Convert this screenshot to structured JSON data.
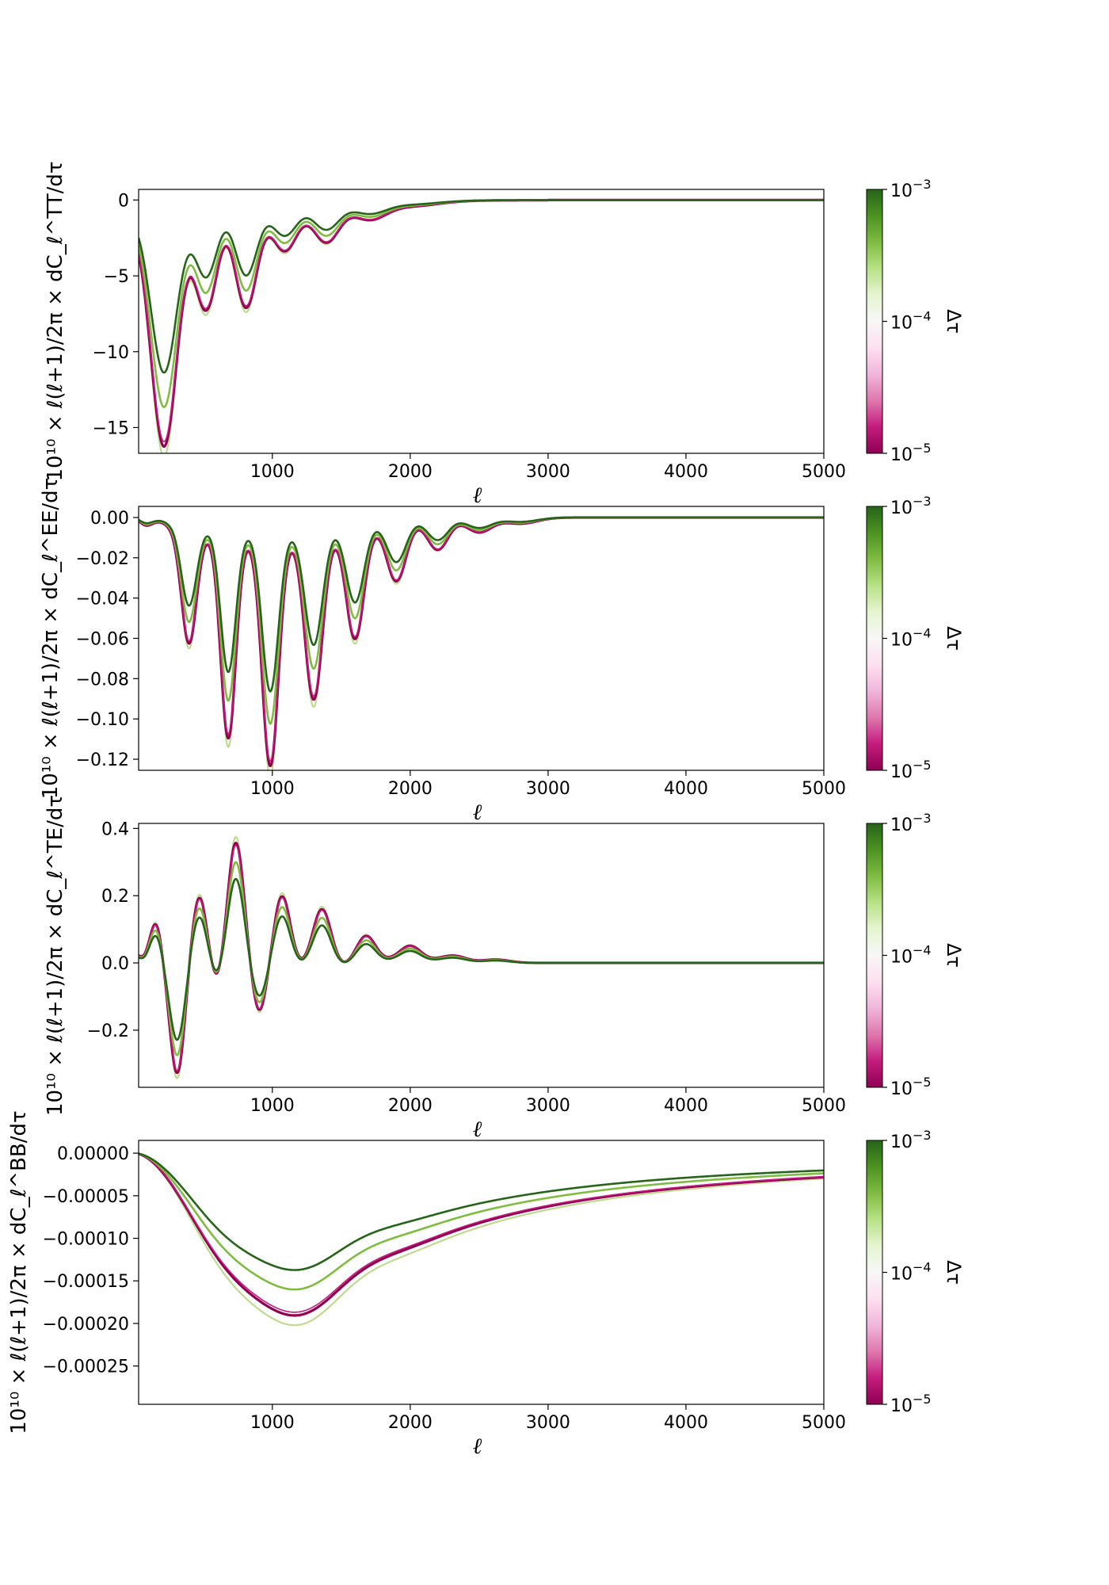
{
  "colorbar": {
    "label": "Δτ",
    "ticks": [
      {
        "base": "10",
        "exp": "−3"
      },
      {
        "base": "10",
        "exp": "−4"
      },
      {
        "base": "10",
        "exp": "−5"
      }
    ],
    "colors": [
      "#8e0152",
      "#c51b7d",
      "#de77ae",
      "#f1b6da",
      "#fde0ef",
      "#f7f7f7",
      "#e6f5d0",
      "#b8e186",
      "#7fbc41",
      "#4d9221",
      "#276419"
    ]
  },
  "series_colors": {
    "tau_1e-3": "#276419",
    "tau_5e-4": "#4d9221",
    "tau_3e-4": "#7fbc41",
    "tau_1e-5": "#c0d990",
    "tau_3e-5": "#b8e186",
    "tau_1e-4_pink": "#c51b7d",
    "tau_3e-5_mag": "#8e0152"
  },
  "chart_data": [
    {
      "type": "line",
      "ylabel": "10¹⁰ × ℓ(ℓ+1)/2π × dC_ℓ^TT/dτ",
      "xlabel": "ℓ",
      "xlim": [
        30,
        5000
      ],
      "ylim": [
        -16.7,
        0.7
      ],
      "xticks": [
        1000,
        2000,
        3000,
        4000,
        5000
      ],
      "yticks": [
        0,
        -5,
        -10,
        -15
      ],
      "ytick_labels": [
        "0",
        "−5",
        "−10",
        "−15"
      ],
      "kind": "tt",
      "note_series": [
        "1e-3",
        "5e-4",
        "1e-5",
        "1e-4"
      ]
    },
    {
      "type": "line",
      "ylabel": "10¹⁰ × ℓ(ℓ+1)/2π × dC_ℓ^EE/dτ",
      "xlabel": "ℓ",
      "xlim": [
        30,
        5000
      ],
      "ylim": [
        -0.1255,
        0.0055
      ],
      "xticks": [
        1000,
        2000,
        3000,
        4000,
        5000
      ],
      "yticks": [
        0.0,
        -0.02,
        -0.04,
        -0.06,
        -0.08,
        -0.1,
        -0.12
      ],
      "ytick_labels": [
        "0.00",
        "−0.02",
        "−0.04",
        "−0.06",
        "−0.08",
        "−0.10",
        "−0.12"
      ],
      "kind": "ee"
    },
    {
      "type": "line",
      "ylabel": "10¹⁰ × ℓ(ℓ+1)/2π × dC_ℓ^TE/dτ",
      "xlabel": "ℓ",
      "xlim": [
        30,
        5000
      ],
      "ylim": [
        -0.37,
        0.415
      ],
      "xticks": [
        1000,
        2000,
        3000,
        4000,
        5000
      ],
      "yticks": [
        0.4,
        0.2,
        0.0,
        -0.2
      ],
      "ytick_labels": [
        "0.4",
        "0.2",
        "0.0",
        "−0.2"
      ],
      "kind": "te"
    },
    {
      "type": "line",
      "ylabel": "10¹⁰ × ℓ(ℓ+1)/2π × dC_ℓ^BB/dτ",
      "xlabel": "ℓ",
      "xlim": [
        30,
        5000
      ],
      "ylim": [
        -0.000295,
        1.5e-05
      ],
      "xticks": [
        1000,
        2000,
        3000,
        4000,
        5000
      ],
      "yticks": [
        0.0,
        -5e-05,
        -0.0001,
        -0.00015,
        -0.0002,
        -0.00025
      ],
      "ytick_labels": [
        "0.00000",
        "−0.00005",
        "−0.00010",
        "−0.00015",
        "−0.00020",
        "−0.00025"
      ],
      "kind": "bb"
    }
  ]
}
